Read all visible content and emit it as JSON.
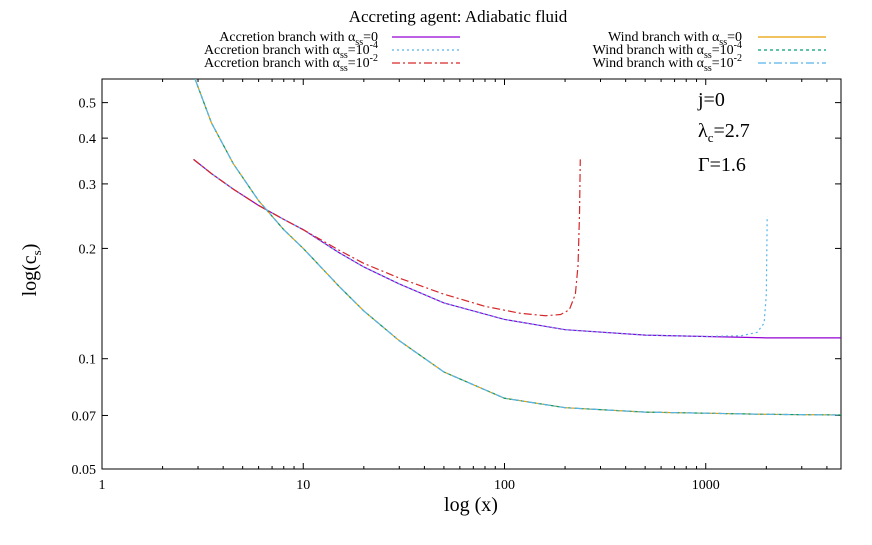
{
  "chart_data": {
    "type": "line",
    "title": "Accreting agent: Adiabatic fluid",
    "xlabel": "log (x)",
    "ylabel_main": "log(c",
    "ylabel_sub": "s",
    "xscale": "log",
    "yscale": "log",
    "xlim": [
      1,
      4700
    ],
    "ylim": [
      0.05,
      0.58
    ],
    "grid": false,
    "legend_position": "top, two columns above plot",
    "x_ticks": [
      {
        "value": 1,
        "label": "1"
      },
      {
        "value": 10,
        "label": "10"
      },
      {
        "value": 100,
        "label": "100"
      },
      {
        "value": 1000,
        "label": "1000"
      }
    ],
    "y_ticks": [
      {
        "value": 0.05,
        "label": "0.05"
      },
      {
        "value": 0.07,
        "label": "0.07"
      },
      {
        "value": 0.1,
        "label": "0.1"
      },
      {
        "value": 0.2,
        "label": "0.2"
      },
      {
        "value": 0.3,
        "label": "0.3"
      },
      {
        "value": 0.4,
        "label": "0.4"
      },
      {
        "value": 0.5,
        "label": "0.5"
      }
    ],
    "annotations": [
      {
        "main": "j=0",
        "sub": ""
      },
      {
        "main": "λ",
        "sub": "c",
        "tail": "=2.7"
      },
      {
        "main": "Γ=1.6",
        "sub": ""
      }
    ],
    "series": [
      {
        "name": "Accretion branch with α",
        "sub": "ss",
        "sup": "",
        "tail": "=0",
        "color": "#9400d3",
        "dash": "",
        "x": [
          2.85,
          3.5,
          4.5,
          6,
          8,
          10,
          15,
          20,
          30,
          50,
          100,
          200,
          500,
          1000,
          2000,
          4700
        ],
        "y": [
          0.35,
          0.32,
          0.29,
          0.262,
          0.24,
          0.225,
          0.195,
          0.178,
          0.16,
          0.142,
          0.128,
          0.12,
          0.116,
          0.115,
          0.114,
          0.114
        ]
      },
      {
        "name": "Accretion branch with α",
        "sub": "ss",
        "sup": "-4",
        "tail": "=10",
        "color": "#56b4e9",
        "dash": "2,3",
        "x": [
          2.85,
          3.5,
          4.5,
          6,
          8,
          10,
          15,
          20,
          30,
          50,
          100,
          200,
          500,
          1000,
          1500,
          1800,
          1950,
          2000,
          2020
        ],
        "y": [
          0.35,
          0.32,
          0.29,
          0.262,
          0.24,
          0.225,
          0.195,
          0.178,
          0.16,
          0.142,
          0.128,
          0.12,
          0.116,
          0.115,
          0.1155,
          0.118,
          0.125,
          0.15,
          0.245
        ]
      },
      {
        "name": "Accretion branch with α",
        "sub": "ss",
        "sup": "-2",
        "tail": "=10",
        "color": "#d62728",
        "dash": "8,3,2,3",
        "x": [
          2.85,
          3.5,
          4.5,
          6,
          8,
          10,
          15,
          20,
          30,
          50,
          80,
          120,
          160,
          190,
          210,
          225,
          232,
          236,
          238
        ],
        "y": [
          0.35,
          0.32,
          0.29,
          0.262,
          0.24,
          0.225,
          0.198,
          0.182,
          0.166,
          0.15,
          0.139,
          0.133,
          0.131,
          0.132,
          0.136,
          0.15,
          0.18,
          0.25,
          0.35
        ]
      },
      {
        "name": "Wind branch with α",
        "sub": "ss",
        "sup": "",
        "tail": "=0",
        "color": "#e69f00",
        "dash": "",
        "x": [
          2.9,
          3.5,
          4.5,
          6,
          8,
          10,
          15,
          20,
          30,
          50,
          100,
          200,
          500,
          1000,
          2000,
          4700
        ],
        "y": [
          0.58,
          0.44,
          0.34,
          0.27,
          0.225,
          0.2,
          0.158,
          0.135,
          0.112,
          0.092,
          0.078,
          0.0735,
          0.0715,
          0.071,
          0.0705,
          0.0702
        ]
      },
      {
        "name": "Wind branch with α",
        "sub": "ss",
        "sup": "-4",
        "tail": "=10",
        "color": "#009e73",
        "dash": "3,3",
        "x": [
          2.9,
          3.5,
          4.5,
          6,
          8,
          10,
          15,
          20,
          30,
          50,
          100,
          200,
          500,
          1000,
          2000,
          4700
        ],
        "y": [
          0.58,
          0.44,
          0.34,
          0.27,
          0.225,
          0.2,
          0.158,
          0.135,
          0.112,
          0.092,
          0.078,
          0.0735,
          0.0715,
          0.071,
          0.0705,
          0.0702
        ]
      },
      {
        "name": "Wind branch with α",
        "sub": "ss",
        "sup": "-2",
        "tail": "=10",
        "color": "#56b4e9",
        "dash": "8,3,2,3",
        "x": [
          2.9,
          3.5,
          4.5,
          6,
          8,
          10,
          15,
          20,
          30,
          50,
          100,
          200,
          500,
          1000,
          2000,
          4700
        ],
        "y": [
          0.58,
          0.44,
          0.34,
          0.27,
          0.225,
          0.2,
          0.158,
          0.135,
          0.112,
          0.092,
          0.078,
          0.0735,
          0.0715,
          0.071,
          0.0705,
          0.0702
        ]
      }
    ]
  }
}
